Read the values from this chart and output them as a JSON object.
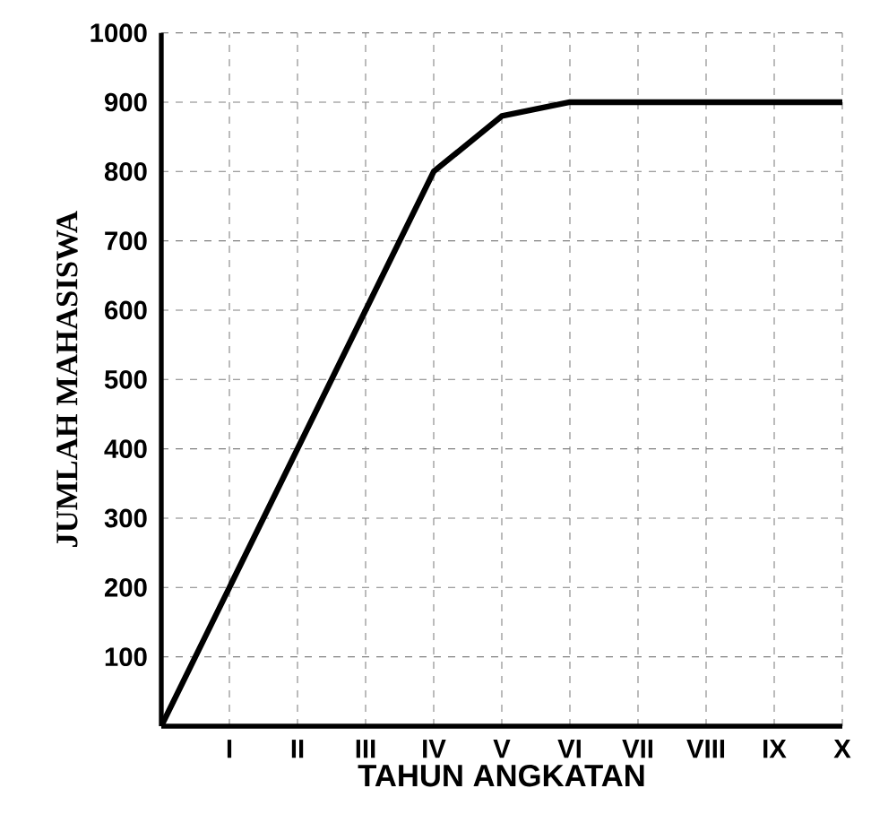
{
  "chart_data": {
    "type": "line",
    "xlabel": "TAHUN  ANGKATAN",
    "ylabel": "JUMLAH  MAHASISWA",
    "categories": [
      null,
      "I",
      "II",
      "III",
      "IV",
      "V",
      "VI",
      "VII",
      "VIII",
      "IX",
      "X"
    ],
    "series": [
      {
        "color": "#000000",
        "values": [
          0,
          200,
          400,
          600,
          800,
          880,
          900,
          900,
          900,
          900,
          900
        ]
      }
    ],
    "ylim": [
      0,
      1000
    ],
    "yticks": [
      100,
      200,
      300,
      400,
      500,
      600,
      700,
      800,
      900,
      1000
    ],
    "grid": true,
    "marker": "none",
    "line_style": "solid"
  }
}
